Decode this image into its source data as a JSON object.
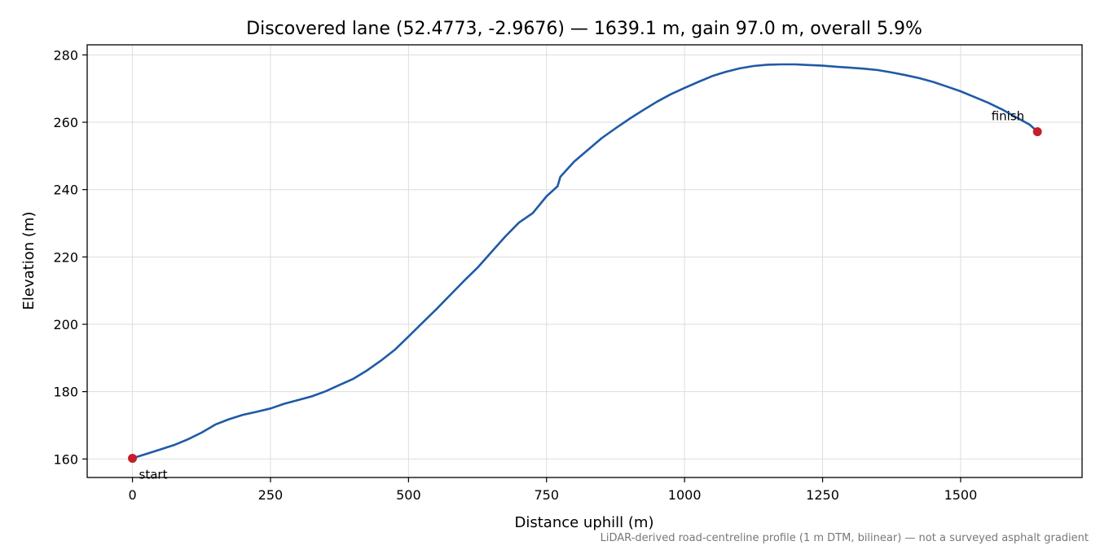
{
  "chart_data": {
    "type": "line",
    "title": "Discovered lane (52.4773, -2.9676) — 1639.1 m, gain 97.0 m, overall 5.9%",
    "xlabel": "Distance uphill (m)",
    "ylabel": "Elevation (m)",
    "xlim": [
      -82,
      1720
    ],
    "ylim": [
      154.5,
      283
    ],
    "x_ticks": [
      0,
      250,
      500,
      750,
      1000,
      1250,
      1500
    ],
    "y_ticks": [
      160,
      180,
      200,
      220,
      240,
      260,
      280
    ],
    "grid": true,
    "line_color": "#1f5aa6",
    "marker_color": "#c41f2b",
    "series": [
      {
        "x": [
          0,
          25,
          50,
          75,
          100,
          125,
          150,
          175,
          200,
          225,
          250,
          275,
          300,
          325,
          350,
          375,
          400,
          425,
          450,
          475,
          500,
          525,
          550,
          575,
          600,
          625,
          650,
          675,
          700,
          725,
          750,
          770,
          775,
          800,
          825,
          850,
          875,
          900,
          925,
          950,
          975,
          1000,
          1025,
          1050,
          1075,
          1100,
          1125,
          1150,
          1175,
          1200,
          1225,
          1250,
          1275,
          1300,
          1325,
          1350,
          1375,
          1400,
          1425,
          1450,
          1475,
          1500,
          1525,
          1550,
          1575,
          1600,
          1625,
          1639.1
        ],
        "y": [
          160.2,
          161.5,
          162.8,
          164.1,
          165.8,
          167.8,
          170.2,
          171.8,
          173.1,
          174.0,
          175.0,
          176.4,
          177.5,
          178.6,
          180.1,
          182.0,
          183.8,
          186.3,
          189.2,
          192.4,
          196.4,
          200.4,
          204.4,
          208.6,
          212.8,
          216.8,
          221.4,
          226.0,
          230.2,
          233.0,
          238.0,
          241.0,
          243.8,
          248.3,
          251.8,
          255.3,
          258.2,
          261.0,
          263.6,
          266.1,
          268.3,
          270.2,
          272.0,
          273.7,
          275.0,
          276.0,
          276.7,
          277.1,
          277.2,
          277.2,
          277.0,
          276.8,
          276.5,
          276.2,
          275.9,
          275.5,
          274.8,
          274.0,
          273.1,
          272.0,
          270.6,
          269.2,
          267.5,
          265.8,
          263.8,
          261.5,
          259.3,
          257.2
        ]
      }
    ],
    "markers": [
      {
        "label": "start",
        "x": 0,
        "y": 160.2
      },
      {
        "label": "finish",
        "x": 1639.1,
        "y": 257.2
      }
    ],
    "footnote": "LiDAR-derived road-centreline profile (1 m DTM, bilinear) — not a surveyed asphalt gradient"
  }
}
